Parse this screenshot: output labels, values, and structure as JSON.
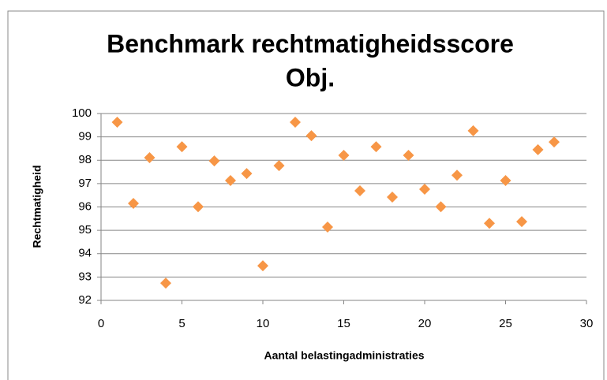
{
  "chart_data": {
    "type": "scatter",
    "title": [
      "Benchmark rechtmatigheidsscore",
      "Obj."
    ],
    "xlabel": "Aantal belastingadministraties",
    "ylabel": "Rechtmatigheid",
    "x": [
      1,
      2,
      3,
      4,
      5,
      6,
      7,
      8,
      9,
      10,
      11,
      12,
      13,
      14,
      15,
      16,
      17,
      18,
      19,
      20,
      21,
      22,
      23,
      24,
      25,
      26,
      27,
      28
    ],
    "series": [
      {
        "name": "Rechtmatigheid",
        "color": "#f79646",
        "values": [
          99.63,
          96.15,
          98.11,
          92.74,
          98.58,
          96.01,
          97.97,
          97.13,
          97.43,
          93.48,
          97.77,
          99.63,
          99.05,
          95.14,
          98.21,
          96.69,
          98.58,
          96.42,
          98.21,
          96.76,
          96.01,
          97.36,
          99.26,
          95.3,
          97.13,
          95.37,
          98.45,
          98.78
        ]
      }
    ],
    "xlim": [
      0,
      30
    ],
    "xticks": [
      0,
      5,
      10,
      15,
      20,
      25,
      30
    ],
    "ylim": [
      92,
      100
    ],
    "yticks": [
      92,
      93,
      94,
      95,
      96,
      97,
      98,
      99,
      100
    ],
    "grid": true
  }
}
